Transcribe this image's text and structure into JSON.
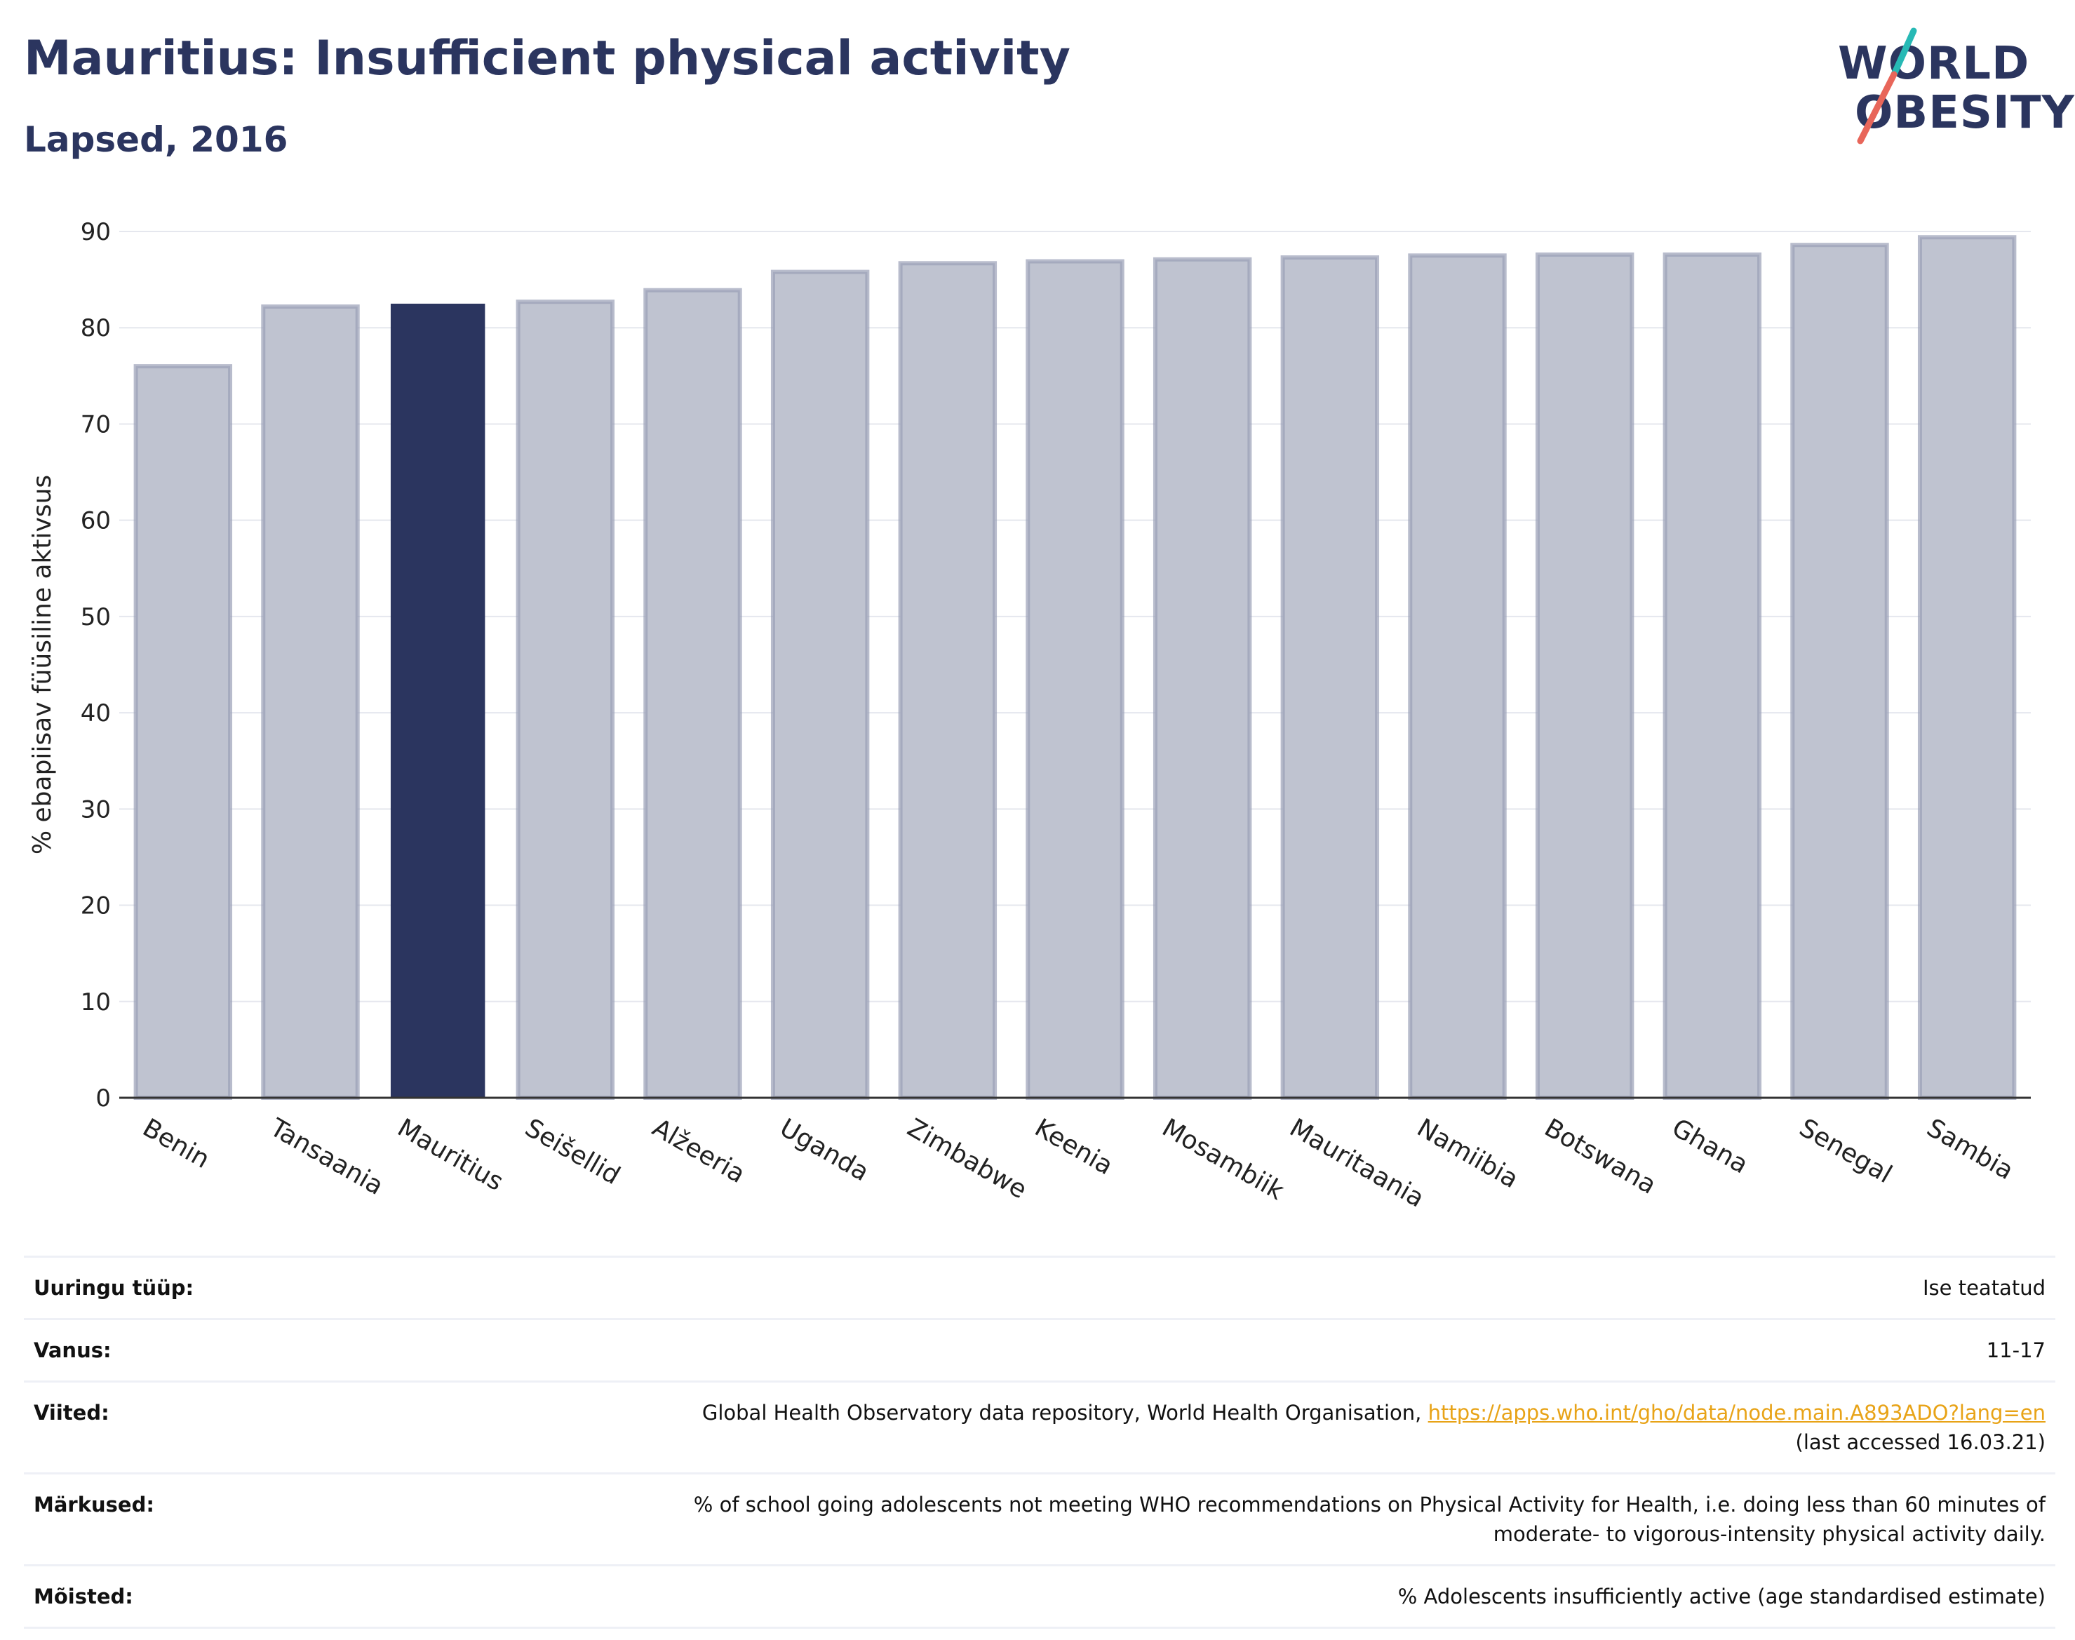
{
  "header": {
    "title": "Mauritius: Insufficient physical activity",
    "subtitle": "Lapsed, 2016",
    "logo_line1": "WORLD",
    "logo_line2": "OBESITY"
  },
  "colors": {
    "highlight": "#2b355f",
    "bar": "#bfc3d0",
    "bar_border": "#9aa0b6",
    "grid": "#e5e7ee",
    "axis": "#333333",
    "link": "#e8a317",
    "logo_teal": "#27b9b5",
    "logo_red": "#e8665a"
  },
  "chart_data": {
    "type": "bar",
    "title": "Mauritius: Insufficient physical activity",
    "subtitle": "Lapsed, 2016",
    "ylabel": "% ebapiisav füüsiline aktivsus",
    "xlabel": "",
    "ylim": [
      0,
      90
    ],
    "yticks": [
      0,
      10,
      20,
      30,
      40,
      50,
      60,
      70,
      80,
      90
    ],
    "grid": true,
    "highlight": "Mauritius",
    "categories": [
      "Benin",
      "Tansaania",
      "Mauritius",
      "Seišellid",
      "Alžeeria",
      "Uganda",
      "Zimbabwe",
      "Keenia",
      "Mosambiik",
      "Mauritaania",
      "Namiibia",
      "Botswana",
      "Ghana",
      "Senegal",
      "Sambia"
    ],
    "values": [
      76.0,
      82.2,
      82.5,
      82.7,
      83.9,
      85.8,
      86.7,
      86.9,
      87.1,
      87.3,
      87.5,
      87.6,
      87.6,
      88.6,
      89.4
    ]
  },
  "meta": {
    "rows": [
      {
        "key": "Uuringu tüüp:",
        "value": "Ise teatatud"
      },
      {
        "key": "Vanus:",
        "value": "11-17"
      },
      {
        "key": "Viited:",
        "value": "Global Health Observatory data repository, World Health Organisation, ",
        "link": "https://apps.who.int/gho/data/node.main.A893ADO?lang=en",
        "extra": "(last accessed 16.03.21)"
      },
      {
        "key": "Märkused:",
        "value": "% of school going adolescents not meeting WHO recommendations on Physical Activity for Health, i.e. doing less than 60 minutes of",
        "extra": "moderate- to vigorous-intensity physical activity daily."
      },
      {
        "key": "Mõisted:",
        "value": "% Adolescents insufficiently active (age standardised estimate)"
      }
    ]
  }
}
